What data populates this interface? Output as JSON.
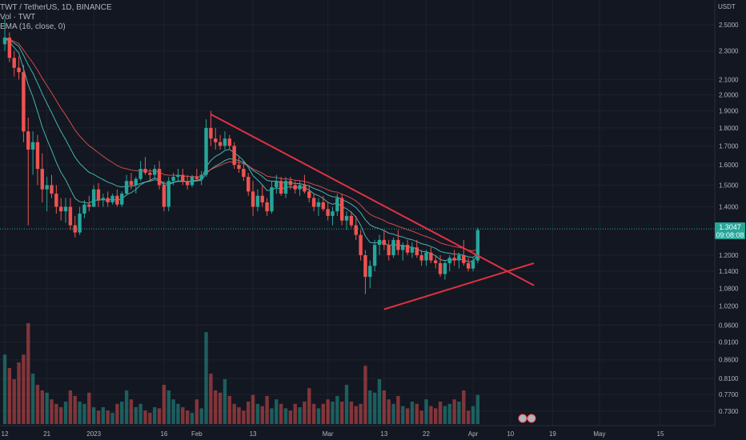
{
  "header": {
    "title": "TWT / TetherUS, 1D, BINANCE",
    "vol_label": "Vol · TWT",
    "indicator_label": "EMA (16, close, 0)"
  },
  "price_scale": {
    "unit": "USDT",
    "last_price": "1.3047",
    "countdown": "09:08:08"
  },
  "colors": {
    "background": "#131722",
    "up": "#26a69a",
    "down": "#ef5350",
    "trendline": "#e0323f",
    "ema_fast": "#4dd0c4",
    "ema_slow": "#ef5350"
  },
  "chart_data": {
    "type": "candlestick",
    "y_scale": "log",
    "y_ticks": [
      "2.5000",
      "2.3000",
      "2.1000",
      "2.0000",
      "1.9000",
      "1.8000",
      "1.7000",
      "1.6000",
      "1.5000",
      "1.4000",
      "1.2000",
      "1.1400",
      "1.0800",
      "1.0200",
      "0.9600",
      "0.9100",
      "0.8600",
      "0.8100",
      "0.7700",
      "0.7300"
    ],
    "y_tick_values": [
      2.5,
      2.3,
      2.1,
      2.0,
      1.9,
      1.8,
      1.7,
      1.6,
      1.5,
      1.4,
      1.2,
      1.14,
      1.08,
      1.02,
      0.96,
      0.91,
      0.86,
      0.81,
      0.77,
      0.73
    ],
    "x_ticks": [
      "12",
      "21",
      "2023",
      "16",
      "Feb",
      "13",
      "Mar",
      "13",
      "22",
      "Apr",
      "10",
      "19",
      "May",
      "15"
    ],
    "x_tick_days": [
      0,
      9,
      19,
      34,
      41,
      53,
      69,
      81,
      90,
      100,
      108,
      117,
      127,
      140
    ],
    "volume_style": "translucent histogram",
    "series": [
      {
        "name": "TWT / TetherUS",
        "ohlc": [
          [
            2.35,
            2.55,
            2.3,
            2.4
          ],
          [
            2.4,
            2.44,
            2.22,
            2.25
          ],
          [
            2.25,
            2.3,
            2.12,
            2.18
          ],
          [
            2.18,
            2.26,
            2.1,
            2.15
          ],
          [
            2.15,
            2.2,
            1.72,
            1.78
          ],
          [
            1.78,
            1.86,
            1.32,
            1.68
          ],
          [
            1.68,
            1.78,
            1.55,
            1.72
          ],
          [
            1.72,
            1.76,
            1.5,
            1.58
          ],
          [
            1.58,
            1.66,
            1.42,
            1.48
          ],
          [
            1.48,
            1.54,
            1.38,
            1.5
          ],
          [
            1.5,
            1.55,
            1.44,
            1.46
          ],
          [
            1.46,
            1.5,
            1.37,
            1.4
          ],
          [
            1.4,
            1.44,
            1.34,
            1.38
          ],
          [
            1.38,
            1.44,
            1.33,
            1.4
          ],
          [
            1.4,
            1.44,
            1.3,
            1.32
          ],
          [
            1.32,
            1.36,
            1.27,
            1.29
          ],
          [
            1.29,
            1.4,
            1.28,
            1.37
          ],
          [
            1.37,
            1.43,
            1.35,
            1.41
          ],
          [
            1.41,
            1.45,
            1.38,
            1.4
          ],
          [
            1.4,
            1.5,
            1.4,
            1.48
          ],
          [
            1.48,
            1.51,
            1.4,
            1.43
          ],
          [
            1.43,
            1.46,
            1.4,
            1.44
          ],
          [
            1.44,
            1.47,
            1.4,
            1.42
          ],
          [
            1.42,
            1.46,
            1.41,
            1.45
          ],
          [
            1.45,
            1.48,
            1.4,
            1.41
          ],
          [
            1.41,
            1.47,
            1.4,
            1.46
          ],
          [
            1.46,
            1.55,
            1.45,
            1.52
          ],
          [
            1.52,
            1.56,
            1.48,
            1.5
          ],
          [
            1.5,
            1.54,
            1.46,
            1.53
          ],
          [
            1.53,
            1.62,
            1.52,
            1.58
          ],
          [
            1.58,
            1.64,
            1.55,
            1.56
          ],
          [
            1.56,
            1.58,
            1.52,
            1.55
          ],
          [
            1.55,
            1.6,
            1.53,
            1.58
          ],
          [
            1.58,
            1.62,
            1.48,
            1.5
          ],
          [
            1.5,
            1.52,
            1.38,
            1.4
          ],
          [
            1.4,
            1.54,
            1.38,
            1.52
          ],
          [
            1.52,
            1.56,
            1.5,
            1.54
          ],
          [
            1.54,
            1.58,
            1.52,
            1.55
          ],
          [
            1.55,
            1.58,
            1.5,
            1.52
          ],
          [
            1.52,
            1.55,
            1.48,
            1.5
          ],
          [
            1.5,
            1.55,
            1.49,
            1.54
          ],
          [
            1.54,
            1.58,
            1.52,
            1.53
          ],
          [
            1.53,
            1.57,
            1.5,
            1.55
          ],
          [
            1.55,
            1.85,
            1.54,
            1.8
          ],
          [
            1.8,
            1.9,
            1.7,
            1.74
          ],
          [
            1.74,
            1.8,
            1.68,
            1.72
          ],
          [
            1.72,
            1.76,
            1.68,
            1.7
          ],
          [
            1.7,
            1.78,
            1.68,
            1.74
          ],
          [
            1.74,
            1.76,
            1.68,
            1.7
          ],
          [
            1.7,
            1.72,
            1.58,
            1.6
          ],
          [
            1.6,
            1.64,
            1.56,
            1.58
          ],
          [
            1.58,
            1.62,
            1.52,
            1.54
          ],
          [
            1.54,
            1.56,
            1.45,
            1.47
          ],
          [
            1.47,
            1.52,
            1.36,
            1.4
          ],
          [
            1.4,
            1.48,
            1.38,
            1.45
          ],
          [
            1.45,
            1.5,
            1.4,
            1.42
          ],
          [
            1.42,
            1.44,
            1.36,
            1.38
          ],
          [
            1.38,
            1.52,
            1.37,
            1.49
          ],
          [
            1.49,
            1.55,
            1.46,
            1.52
          ],
          [
            1.52,
            1.54,
            1.45,
            1.46
          ],
          [
            1.46,
            1.54,
            1.44,
            1.52
          ],
          [
            1.52,
            1.54,
            1.48,
            1.5
          ],
          [
            1.5,
            1.52,
            1.46,
            1.48
          ],
          [
            1.48,
            1.52,
            1.45,
            1.5
          ],
          [
            1.5,
            1.55,
            1.46,
            1.47
          ],
          [
            1.47,
            1.5,
            1.42,
            1.44
          ],
          [
            1.44,
            1.46,
            1.38,
            1.4
          ],
          [
            1.4,
            1.44,
            1.36,
            1.42
          ],
          [
            1.42,
            1.45,
            1.38,
            1.39
          ],
          [
            1.39,
            1.42,
            1.34,
            1.36
          ],
          [
            1.36,
            1.4,
            1.32,
            1.38
          ],
          [
            1.38,
            1.46,
            1.36,
            1.44
          ],
          [
            1.44,
            1.46,
            1.32,
            1.34
          ],
          [
            1.34,
            1.38,
            1.3,
            1.36
          ],
          [
            1.36,
            1.38,
            1.31,
            1.32
          ],
          [
            1.32,
            1.36,
            1.26,
            1.28
          ],
          [
            1.28,
            1.3,
            1.18,
            1.2
          ],
          [
            1.2,
            1.22,
            1.06,
            1.12
          ],
          [
            1.12,
            1.18,
            1.08,
            1.16
          ],
          [
            1.16,
            1.26,
            1.14,
            1.24
          ],
          [
            1.24,
            1.28,
            1.2,
            1.26
          ],
          [
            1.26,
            1.3,
            1.22,
            1.24
          ],
          [
            1.24,
            1.26,
            1.18,
            1.2
          ],
          [
            1.2,
            1.27,
            1.19,
            1.26
          ],
          [
            1.26,
            1.3,
            1.2,
            1.22
          ],
          [
            1.22,
            1.25,
            1.18,
            1.24
          ],
          [
            1.24,
            1.26,
            1.2,
            1.21
          ],
          [
            1.21,
            1.25,
            1.19,
            1.23
          ],
          [
            1.23,
            1.26,
            1.19,
            1.2
          ],
          [
            1.2,
            1.22,
            1.16,
            1.18
          ],
          [
            1.18,
            1.22,
            1.16,
            1.21
          ],
          [
            1.21,
            1.23,
            1.17,
            1.18
          ],
          [
            1.18,
            1.2,
            1.15,
            1.17
          ],
          [
            1.17,
            1.2,
            1.12,
            1.13
          ],
          [
            1.13,
            1.18,
            1.11,
            1.17
          ],
          [
            1.17,
            1.2,
            1.14,
            1.19
          ],
          [
            1.19,
            1.22,
            1.16,
            1.18
          ],
          [
            1.18,
            1.21,
            1.15,
            1.2
          ],
          [
            1.2,
            1.26,
            1.16,
            1.17
          ],
          [
            1.17,
            1.19,
            1.14,
            1.15
          ],
          [
            1.15,
            1.19,
            1.14,
            1.18
          ],
          [
            1.18,
            1.31,
            1.17,
            1.3
          ]
        ]
      }
    ],
    "volume": [
      0.62,
      0.5,
      0.4,
      0.55,
      0.62,
      0.9,
      0.45,
      0.35,
      0.3,
      0.28,
      0.22,
      0.18,
      0.15,
      0.2,
      0.3,
      0.25,
      0.2,
      0.18,
      0.28,
      0.15,
      0.12,
      0.15,
      0.12,
      0.1,
      0.18,
      0.2,
      0.3,
      0.22,
      0.15,
      0.18,
      0.12,
      0.1,
      0.15,
      0.14,
      0.35,
      0.3,
      0.22,
      0.18,
      0.15,
      0.12,
      0.1,
      0.22,
      0.14,
      0.82,
      0.45,
      0.3,
      0.28,
      0.4,
      0.25,
      0.18,
      0.15,
      0.12,
      0.2,
      0.26,
      0.18,
      0.16,
      0.25,
      0.14,
      0.22,
      0.18,
      0.14,
      0.12,
      0.18,
      0.15,
      0.2,
      0.32,
      0.18,
      0.14,
      0.18,
      0.22,
      0.2,
      0.25,
      0.2,
      0.35,
      0.2,
      0.16,
      0.18,
      0.52,
      0.3,
      0.28,
      0.4,
      0.3,
      0.22,
      0.18,
      0.25,
      0.16,
      0.14,
      0.2,
      0.18,
      0.12,
      0.22,
      0.16,
      0.14,
      0.2,
      0.16,
      0.18,
      0.22,
      0.2,
      0.3,
      0.12,
      0.16,
      0.26
    ],
    "trendlines": [
      {
        "from": [
          44,
          1.88
        ],
        "to": [
          113,
          1.09
        ]
      },
      {
        "from": [
          81,
          1.01
        ],
        "to": [
          113,
          1.17
        ]
      }
    ]
  }
}
